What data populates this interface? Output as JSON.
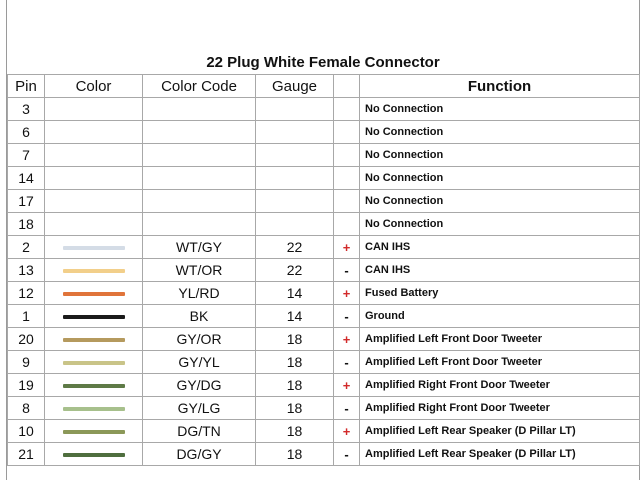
{
  "title": "22 Plug White Female Connector",
  "headers": {
    "pin": "Pin",
    "color": "Color",
    "color_code": "Color Code",
    "gauge": "Gauge",
    "sign": "",
    "function": "Function"
  },
  "rows": [
    {
      "pin": "3",
      "code": "",
      "gauge": "",
      "sign": "",
      "func": "No Connection",
      "wire": ""
    },
    {
      "pin": "6",
      "code": "",
      "gauge": "",
      "sign": "",
      "func": "No Connection",
      "wire": ""
    },
    {
      "pin": "7",
      "code": "",
      "gauge": "",
      "sign": "",
      "func": "No Connection",
      "wire": ""
    },
    {
      "pin": "14",
      "code": "",
      "gauge": "",
      "sign": "",
      "func": "No Connection",
      "wire": ""
    },
    {
      "pin": "17",
      "code": "",
      "gauge": "",
      "sign": "",
      "func": "No Connection",
      "wire": ""
    },
    {
      "pin": "18",
      "code": "",
      "gauge": "",
      "sign": "",
      "func": "No Connection",
      "wire": ""
    },
    {
      "pin": "2",
      "code": "WT/GY",
      "gauge": "22",
      "sign": "+",
      "func": "CAN IHS",
      "wire": "#d4dce6"
    },
    {
      "pin": "13",
      "code": "WT/OR",
      "gauge": "22",
      "sign": "-",
      "func": "CAN IHS",
      "wire": "#f2cf8a"
    },
    {
      "pin": "12",
      "code": "YL/RD",
      "gauge": "14",
      "sign": "+",
      "func": "Fused Battery",
      "wire": "#e0743a"
    },
    {
      "pin": "1",
      "code": "BK",
      "gauge": "14",
      "sign": "-",
      "func": "Ground",
      "wire": "#1a1a1a"
    },
    {
      "pin": "20",
      "code": "GY/OR",
      "gauge": "18",
      "sign": "+",
      "func": "Amplified Left Front Door Tweeter",
      "wire": "#b59a5e"
    },
    {
      "pin": "9",
      "code": "GY/YL",
      "gauge": "18",
      "sign": "-",
      "func": "Amplified Left Front Door Tweeter",
      "wire": "#c9c488"
    },
    {
      "pin": "19",
      "code": "GY/DG",
      "gauge": "18",
      "sign": "+",
      "func": "Amplified Right Front Door Tweeter",
      "wire": "#5e7a46"
    },
    {
      "pin": "8",
      "code": "GY/LG",
      "gauge": "18",
      "sign": "-",
      "func": "Amplified Right Front Door Tweeter",
      "wire": "#a7c08c"
    },
    {
      "pin": "10",
      "code": "DG/TN",
      "gauge": "18",
      "sign": "+",
      "func": "Amplified Left Rear Speaker (D Pillar LT)",
      "wire": "#8b9858"
    },
    {
      "pin": "21",
      "code": "DG/GY",
      "gauge": "18",
      "sign": "-",
      "func": "Amplified Left Rear Speaker (D Pillar LT)",
      "wire": "#4f6e3e"
    }
  ]
}
